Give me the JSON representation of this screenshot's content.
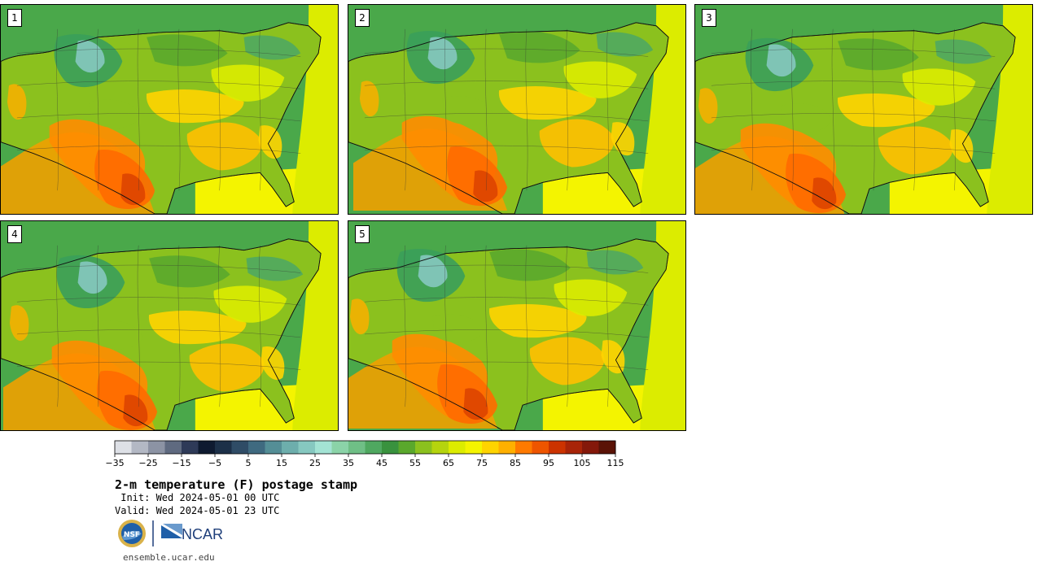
{
  "panels": [
    {
      "label": "1"
    },
    {
      "label": "2"
    },
    {
      "label": "3"
    },
    {
      "label": "4"
    },
    {
      "label": "5"
    }
  ],
  "colorbar": {
    "colors": [
      "#dde0e6",
      "#b3b8c4",
      "#8c93a4",
      "#5f6a80",
      "#2e3a58",
      "#0e1a30",
      "#1c3048",
      "#2f4c66",
      "#3f6a80",
      "#548e96",
      "#6daeac",
      "#86c8c0",
      "#a3e3d4",
      "#8bd3a8",
      "#6fbf86",
      "#4fa860",
      "#39923e",
      "#5aa82c",
      "#8bc11e",
      "#b5d40e",
      "#dcec00",
      "#f4f400",
      "#ffd400",
      "#ffb000",
      "#ff7a00",
      "#ee5500",
      "#cc3300",
      "#a82408",
      "#84180a",
      "#5a1206"
    ],
    "tick_labels": [
      "−35",
      "−25",
      "−15",
      "−5",
      "5",
      "15",
      "25",
      "35",
      "45",
      "55",
      "65",
      "75",
      "85",
      "95",
      "105",
      "115"
    ]
  },
  "title": "2-m temperature (F) postage stamp",
  "init": " Init: Wed 2024-05-01 00 UTC",
  "valid": "Valid: Wed 2024-05-01 23 UTC",
  "logos": {
    "nsf_text": "NSF",
    "ncar_text": "NCAR",
    "icons": [
      "nsf-logo-icon",
      "ncar-logo-icon"
    ]
  },
  "site": "ensemble.ucar.edu"
}
